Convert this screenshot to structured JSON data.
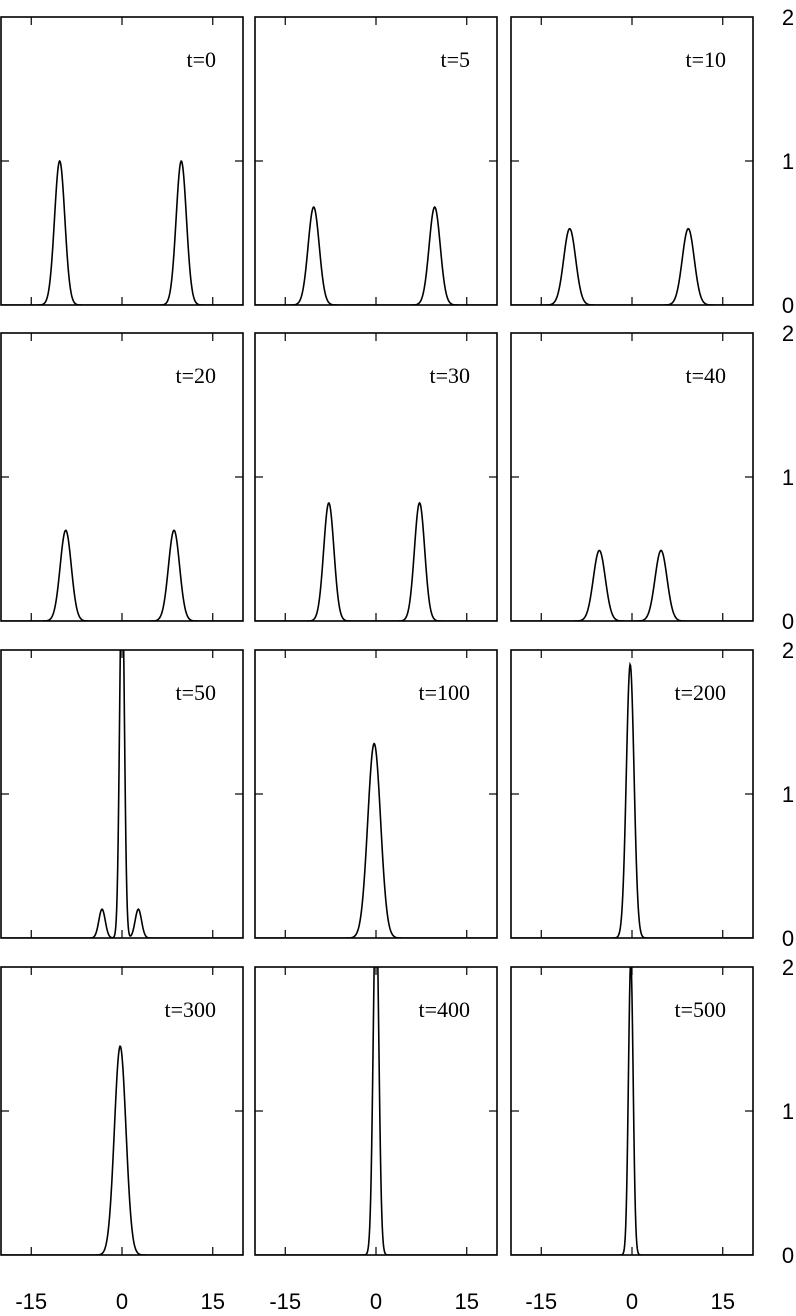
{
  "chart_data": {
    "type": "line",
    "grid": false,
    "title": "",
    "xlabel": "",
    "ylabel": "",
    "xlim": [
      -20,
      20
    ],
    "ylim": [
      0,
      2
    ],
    "x_ticks": [
      -15,
      0,
      15
    ],
    "x_tick_labels": [
      "-15",
      "0",
      "15"
    ],
    "y_ticks": [
      0,
      1,
      2
    ],
    "y_tick_labels": [
      "0",
      "1",
      "2"
    ],
    "panels": [
      {
        "label": "t=0",
        "peaks": [
          {
            "center": -10.3,
            "amp": 1.0,
            "width": 1.2
          },
          {
            "center": 9.8,
            "amp": 1.0,
            "width": 1.2
          }
        ]
      },
      {
        "label": "t=5",
        "peaks": [
          {
            "center": -10.3,
            "amp": 0.68,
            "width": 1.3
          },
          {
            "center": 9.7,
            "amp": 0.68,
            "width": 1.3
          }
        ]
      },
      {
        "label": "t=10",
        "peaks": [
          {
            "center": -10.3,
            "amp": 0.53,
            "width": 1.4
          },
          {
            "center": 9.3,
            "amp": 0.53,
            "width": 1.4
          }
        ]
      },
      {
        "label": "t=20",
        "peaks": [
          {
            "center": -9.3,
            "amp": 0.63,
            "width": 1.3
          },
          {
            "center": 8.6,
            "amp": 0.63,
            "width": 1.3
          }
        ]
      },
      {
        "label": "t=30",
        "peaks": [
          {
            "center": -7.8,
            "amp": 0.82,
            "width": 1.2
          },
          {
            "center": 7.2,
            "amp": 0.82,
            "width": 1.2
          }
        ]
      },
      {
        "label": "t=40",
        "peaks": [
          {
            "center": -5.4,
            "amp": 0.49,
            "width": 1.4
          },
          {
            "center": 4.8,
            "amp": 0.49,
            "width": 1.4
          }
        ]
      },
      {
        "label": "t=50",
        "peaks": [
          {
            "center": 0.0,
            "amp": 2.6,
            "width": 0.55
          },
          {
            "center": -3.3,
            "amp": 0.2,
            "width": 0.75
          },
          {
            "center": 2.7,
            "amp": 0.2,
            "width": 0.75
          }
        ]
      },
      {
        "label": "t=100",
        "peaks": [
          {
            "center": -0.3,
            "amp": 1.35,
            "width": 1.5
          }
        ]
      },
      {
        "label": "t=200",
        "peaks": [
          {
            "center": -0.3,
            "amp": 1.9,
            "width": 0.9
          }
        ]
      },
      {
        "label": "t=300",
        "peaks": [
          {
            "center": -0.3,
            "amp": 1.45,
            "width": 1.35
          }
        ]
      },
      {
        "label": "t=400",
        "peaks": [
          {
            "center": 0.0,
            "amp": 2.5,
            "width": 0.65
          }
        ]
      },
      {
        "label": "t=500",
        "peaks": [
          {
            "center": -0.2,
            "amp": 2.05,
            "width": 0.55
          }
        ]
      }
    ]
  }
}
